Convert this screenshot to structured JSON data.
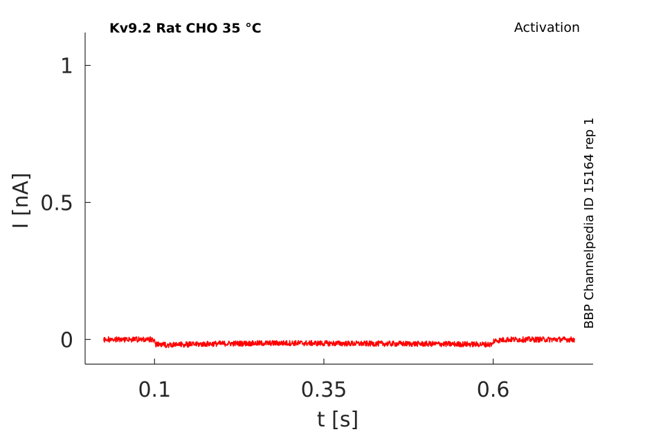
{
  "chart_data": {
    "type": "line",
    "title": "Kv9.2  Rat  CHO  35 °C",
    "protocol": "Activation",
    "source": "BBP Channelpedia ID 15164 rep 1",
    "xlabel": "t [s]",
    "ylabel": "I [nA]",
    "xlim": [
      -0.0025,
      0.7475
    ],
    "ylim": [
      -0.09,
      1.12
    ],
    "x_ticks": [
      {
        "value": 0.1,
        "label": "0.1"
      },
      {
        "value": 0.35,
        "label": "0.35"
      },
      {
        "value": 0.6,
        "label": "0.6"
      }
    ],
    "y_ticks": [
      {
        "value": 0,
        "label": "0"
      },
      {
        "value": 0.5,
        "label": "0.5"
      },
      {
        "value": 1,
        "label": "1"
      }
    ],
    "grid": false,
    "noise_amplitude": 0.01,
    "series": [
      {
        "color": "#ff0000",
        "x": [
          0.025,
          0.1,
          0.1,
          0.12,
          0.2,
          0.3,
          0.4,
          0.5,
          0.6,
          0.6,
          0.62,
          0.72
        ],
        "y": [
          0.0,
          0.0,
          -0.018,
          -0.02,
          -0.015,
          -0.013,
          -0.015,
          -0.016,
          -0.018,
          -0.005,
          0.0,
          0.0
        ]
      }
    ]
  }
}
